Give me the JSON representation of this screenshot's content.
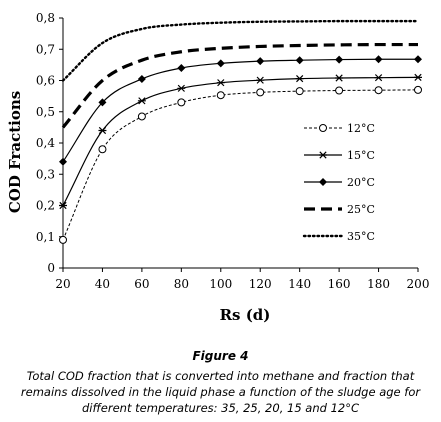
{
  "chart_data": {
    "type": "line",
    "xlabel": "Rs (d)",
    "ylabel": "COD Fractions",
    "xlim": [
      20,
      200
    ],
    "ylim": [
      0,
      0.8
    ],
    "x_ticks": [
      "20",
      "40",
      "60",
      "80",
      "100",
      "120",
      "140",
      "160",
      "180",
      "200"
    ],
    "y_ticks": [
      "0",
      "0,1",
      "0,2",
      "0,3",
      "0,4",
      "0,5",
      "0,6",
      "0,7",
      "0,8"
    ],
    "grid": false,
    "legend_position": "right",
    "x": [
      20,
      40,
      60,
      80,
      100,
      120,
      140,
      160,
      180,
      200
    ],
    "series": [
      {
        "name": "12°C",
        "style": "dashed-thin",
        "marker": "open-circle",
        "values": [
          0.09,
          0.38,
          0.485,
          0.53,
          0.553,
          0.562,
          0.566,
          0.568,
          0.569,
          0.57
        ]
      },
      {
        "name": "15°C",
        "style": "solid",
        "marker": "star",
        "values": [
          0.2,
          0.44,
          0.535,
          0.575,
          0.593,
          0.601,
          0.606,
          0.608,
          0.609,
          0.61
        ]
      },
      {
        "name": "20°C",
        "style": "solid",
        "marker": "diamond",
        "values": [
          0.34,
          0.53,
          0.605,
          0.64,
          0.655,
          0.662,
          0.665,
          0.667,
          0.668,
          0.668
        ]
      },
      {
        "name": "25°C",
        "style": "dashed-bold",
        "marker": "none",
        "values": [
          0.45,
          0.6,
          0.665,
          0.692,
          0.703,
          0.709,
          0.712,
          0.714,
          0.715,
          0.715
        ]
      },
      {
        "name": "35°C",
        "style": "dotted",
        "marker": "none",
        "values": [
          0.6,
          0.72,
          0.765,
          0.779,
          0.785,
          0.788,
          0.789,
          0.79,
          0.79,
          0.79
        ]
      }
    ]
  },
  "caption": {
    "title": "Figure 4",
    "text": "Total COD fraction that is converted into methane and fraction that remains dissolved in the liquid phase a function of the sludge age for different temperatures: 35, 25, 20, 15 and 12°C"
  }
}
